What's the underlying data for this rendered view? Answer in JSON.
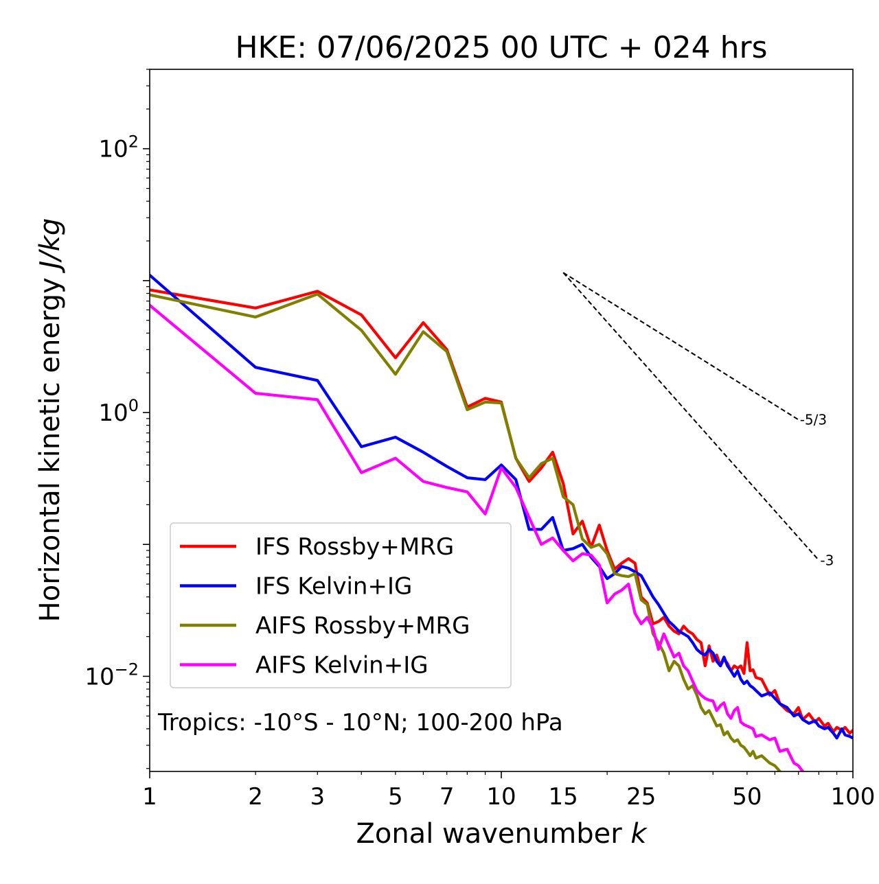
{
  "chart_data": {
    "type": "line",
    "title": "HKE: 07/06/2025 00 UTC + 024 hrs",
    "xlabel": "Zonal wavenumber",
    "xlabel_var": "k",
    "ylabel": "Horizontal kinetic energy",
    "ylabel_units": "J/kg",
    "xscale": "log",
    "yscale": "log",
    "xlim": [
      1,
      100
    ],
    "ylim": [
      0.0019,
      400
    ],
    "x_ticks": [
      1,
      2,
      3,
      5,
      7,
      10,
      15,
      25,
      50,
      100
    ],
    "x_tick_labels": [
      "1",
      "2",
      "3",
      "5",
      "7",
      "10",
      "15",
      "25",
      "50",
      "100"
    ],
    "y_ticks": [
      0.01,
      1,
      100
    ],
    "y_tick_labels": [
      {
        "base": "10",
        "exp": "−2"
      },
      {
        "base": "10",
        "exp": "0"
      },
      {
        "base": "10",
        "exp": "2"
      }
    ],
    "grid": false,
    "legend_position": "lower-left",
    "annotation": "Tropics: -10°S - 10°N; 100-200 hPa",
    "reference_lines": [
      {
        "label": "-5/3",
        "slope": -1.6667,
        "x_start": 15,
        "y_start": 11.5,
        "x_end": 70
      },
      {
        "label": "-3",
        "slope": -3,
        "x_start": 15,
        "y_start": 11.5,
        "x_end": 80
      }
    ],
    "series": [
      {
        "name": "IFS Rossby+MRG",
        "color": "#ff0000",
        "points": [
          [
            1,
            8.5
          ],
          [
            2,
            6.2
          ],
          [
            3,
            8.3
          ],
          [
            4,
            5.5
          ],
          [
            5,
            2.6
          ],
          [
            6,
            4.8
          ],
          [
            7,
            3.0
          ],
          [
            8,
            1.1
          ],
          [
            9,
            1.28
          ],
          [
            10,
            1.2
          ],
          [
            11,
            0.45
          ],
          [
            12,
            0.3
          ],
          [
            13,
            0.38
          ],
          [
            14,
            0.5
          ],
          [
            15,
            0.29
          ],
          [
            16,
            0.12
          ],
          [
            17,
            0.15
          ],
          [
            18,
            0.095
          ],
          [
            19,
            0.14
          ],
          [
            20,
            0.09
          ],
          [
            21,
            0.065
          ],
          [
            22,
            0.072
          ],
          [
            23,
            0.078
          ],
          [
            24,
            0.072
          ],
          [
            25,
            0.04
          ],
          [
            26,
            0.036
          ],
          [
            27,
            0.025
          ],
          [
            28,
            0.026
          ],
          [
            29,
            0.028
          ],
          [
            30,
            0.024
          ],
          [
            31,
            0.022
          ],
          [
            32,
            0.021
          ],
          [
            33,
            0.024
          ],
          [
            34,
            0.022
          ],
          [
            35,
            0.021
          ],
          [
            36,
            0.019
          ],
          [
            37,
            0.018
          ],
          [
            38,
            0.012
          ],
          [
            39,
            0.017
          ],
          [
            40,
            0.013
          ],
          [
            41,
            0.0145
          ],
          [
            42,
            0.012
          ],
          [
            43,
            0.0135
          ],
          [
            44,
            0.0125
          ],
          [
            45,
            0.011
          ],
          [
            46,
            0.012
          ],
          [
            47,
            0.0115
          ],
          [
            48,
            0.012
          ],
          [
            49,
            0.0105
          ],
          [
            50,
            0.018
          ],
          [
            51,
            0.011
          ],
          [
            52,
            0.0112
          ],
          [
            53,
            0.0098
          ],
          [
            55,
            0.0095
          ],
          [
            58,
            0.0072
          ],
          [
            60,
            0.0078
          ],
          [
            62,
            0.0062
          ],
          [
            65,
            0.0055
          ],
          [
            68,
            0.0052
          ],
          [
            70,
            0.0058
          ],
          [
            72,
            0.0047
          ],
          [
            75,
            0.0052
          ],
          [
            78,
            0.0045
          ],
          [
            80,
            0.0048
          ],
          [
            83,
            0.0042
          ],
          [
            85,
            0.0044
          ],
          [
            88,
            0.0038
          ],
          [
            90,
            0.0041
          ],
          [
            93,
            0.0039
          ],
          [
            95,
            0.0041
          ],
          [
            98,
            0.0037
          ],
          [
            100,
            0.0039
          ]
        ]
      },
      {
        "name": "IFS Kelvin+IG",
        "color": "#0000ff",
        "points": [
          [
            1,
            11
          ],
          [
            2,
            2.2
          ],
          [
            3,
            1.75
          ],
          [
            4,
            0.55
          ],
          [
            5,
            0.65
          ],
          [
            6,
            0.5
          ],
          [
            7,
            0.39
          ],
          [
            8,
            0.32
          ],
          [
            9,
            0.31
          ],
          [
            10,
            0.4
          ],
          [
            11,
            0.31
          ],
          [
            12,
            0.13
          ],
          [
            13,
            0.13
          ],
          [
            14,
            0.16
          ],
          [
            15,
            0.09
          ],
          [
            16,
            0.093
          ],
          [
            17,
            0.1
          ],
          [
            18,
            0.08
          ],
          [
            19,
            0.068
          ],
          [
            20,
            0.055
          ],
          [
            21,
            0.06
          ],
          [
            22,
            0.068
          ],
          [
            23,
            0.066
          ],
          [
            24,
            0.062
          ],
          [
            25,
            0.058
          ],
          [
            26,
            0.048
          ],
          [
            27,
            0.04
          ],
          [
            28,
            0.035
          ],
          [
            29,
            0.03
          ],
          [
            30,
            0.026
          ],
          [
            31,
            0.024
          ],
          [
            32,
            0.022
          ],
          [
            33,
            0.021
          ],
          [
            34,
            0.02
          ],
          [
            35,
            0.018
          ],
          [
            36,
            0.016
          ],
          [
            37,
            0.015
          ],
          [
            38,
            0.0145
          ],
          [
            39,
            0.016
          ],
          [
            40,
            0.015
          ],
          [
            41,
            0.013
          ],
          [
            42,
            0.012
          ],
          [
            43,
            0.014
          ],
          [
            44,
            0.012
          ],
          [
            45,
            0.011
          ],
          [
            46,
            0.01
          ],
          [
            47,
            0.011
          ],
          [
            48,
            0.0095
          ],
          [
            49,
            0.0088
          ],
          [
            50,
            0.0092
          ],
          [
            51,
            0.0085
          ],
          [
            52,
            0.0082
          ],
          [
            53,
            0.0078
          ],
          [
            55,
            0.0071
          ],
          [
            58,
            0.0075
          ],
          [
            60,
            0.0068
          ],
          [
            62,
            0.0062
          ],
          [
            65,
            0.0058
          ],
          [
            68,
            0.005
          ],
          [
            70,
            0.0052
          ],
          [
            72,
            0.0047
          ],
          [
            75,
            0.0044
          ],
          [
            78,
            0.0046
          ],
          [
            80,
            0.0042
          ],
          [
            83,
            0.004
          ],
          [
            85,
            0.0041
          ],
          [
            88,
            0.0037
          ],
          [
            90,
            0.0034
          ],
          [
            93,
            0.004
          ],
          [
            95,
            0.0036
          ],
          [
            98,
            0.0035
          ],
          [
            100,
            0.0034
          ]
        ]
      },
      {
        "name": "AIFS Rossby+MRG",
        "color": "#808000",
        "points": [
          [
            1,
            7.8
          ],
          [
            2,
            5.3
          ],
          [
            3,
            7.9
          ],
          [
            4,
            4.2
          ],
          [
            5,
            1.95
          ],
          [
            6,
            4.1
          ],
          [
            7,
            2.9
          ],
          [
            8,
            1.05
          ],
          [
            9,
            1.2
          ],
          [
            10,
            1.18
          ],
          [
            11,
            0.45
          ],
          [
            12,
            0.32
          ],
          [
            13,
            0.41
          ],
          [
            14,
            0.45
          ],
          [
            15,
            0.23
          ],
          [
            16,
            0.2
          ],
          [
            17,
            0.11
          ],
          [
            18,
            0.095
          ],
          [
            19,
            0.1
          ],
          [
            20,
            0.085
          ],
          [
            21,
            0.06
          ],
          [
            22,
            0.058
          ],
          [
            23,
            0.057
          ],
          [
            24,
            0.06
          ],
          [
            25,
            0.038
          ],
          [
            26,
            0.035
          ],
          [
            27,
            0.021
          ],
          [
            28,
            0.018
          ],
          [
            29,
            0.015
          ],
          [
            30,
            0.011
          ],
          [
            31,
            0.013
          ],
          [
            32,
            0.012
          ],
          [
            33,
            0.0095
          ],
          [
            34,
            0.008
          ],
          [
            35,
            0.0085
          ],
          [
            36,
            0.0072
          ],
          [
            37,
            0.0058
          ],
          [
            38,
            0.0052
          ],
          [
            39,
            0.0055
          ],
          [
            40,
            0.0048
          ],
          [
            41,
            0.0042
          ],
          [
            42,
            0.0043
          ],
          [
            43,
            0.0036
          ],
          [
            44,
            0.0038
          ],
          [
            45,
            0.0034
          ],
          [
            46,
            0.0032
          ],
          [
            47,
            0.0033
          ],
          [
            48,
            0.003
          ],
          [
            49,
            0.0029
          ],
          [
            50,
            0.0027
          ],
          [
            51,
            0.0025
          ],
          [
            52,
            0.0027
          ],
          [
            53,
            0.0024
          ],
          [
            55,
            0.0025
          ],
          [
            58,
            0.0022
          ],
          [
            60,
            0.0021
          ],
          [
            62,
            0.0019
          ]
        ]
      },
      {
        "name": "AIFS Kelvin+IG",
        "color": "#ff00ff",
        "points": [
          [
            1,
            6.5
          ],
          [
            2,
            1.4
          ],
          [
            3,
            1.25
          ],
          [
            4,
            0.35
          ],
          [
            5,
            0.45
          ],
          [
            6,
            0.3
          ],
          [
            7,
            0.27
          ],
          [
            8,
            0.25
          ],
          [
            9,
            0.17
          ],
          [
            10,
            0.38
          ],
          [
            11,
            0.27
          ],
          [
            12,
            0.16
          ],
          [
            13,
            0.1
          ],
          [
            14,
            0.112
          ],
          [
            15,
            0.09
          ],
          [
            16,
            0.075
          ],
          [
            17,
            0.085
          ],
          [
            18,
            0.083
          ],
          [
            19,
            0.07
          ],
          [
            20,
            0.036
          ],
          [
            21,
            0.042
          ],
          [
            22,
            0.045
          ],
          [
            23,
            0.05
          ],
          [
            24,
            0.03
          ],
          [
            25,
            0.025
          ],
          [
            26,
            0.028
          ],
          [
            27,
            0.023
          ],
          [
            28,
            0.016
          ],
          [
            29,
            0.021
          ],
          [
            30,
            0.017
          ],
          [
            31,
            0.014
          ],
          [
            32,
            0.015
          ],
          [
            33,
            0.012
          ],
          [
            34,
            0.011
          ],
          [
            35,
            0.0092
          ],
          [
            36,
            0.0078
          ],
          [
            37,
            0.0072
          ],
          [
            38,
            0.0068
          ],
          [
            39,
            0.0066
          ],
          [
            40,
            0.0065
          ],
          [
            41,
            0.0055
          ],
          [
            42,
            0.006
          ],
          [
            43,
            0.0063
          ],
          [
            44,
            0.0052
          ],
          [
            45,
            0.0048
          ],
          [
            46,
            0.0055
          ],
          [
            47,
            0.0058
          ],
          [
            48,
            0.0045
          ],
          [
            49,
            0.0043
          ],
          [
            50,
            0.0042
          ],
          [
            51,
            0.0041
          ],
          [
            52,
            0.004
          ],
          [
            53,
            0.0035
          ],
          [
            55,
            0.0036
          ],
          [
            58,
            0.0033
          ],
          [
            60,
            0.0034
          ],
          [
            62,
            0.0027
          ],
          [
            65,
            0.0028
          ],
          [
            68,
            0.0022
          ],
          [
            70,
            0.0021
          ],
          [
            72,
            0.0019
          ]
        ]
      }
    ]
  }
}
